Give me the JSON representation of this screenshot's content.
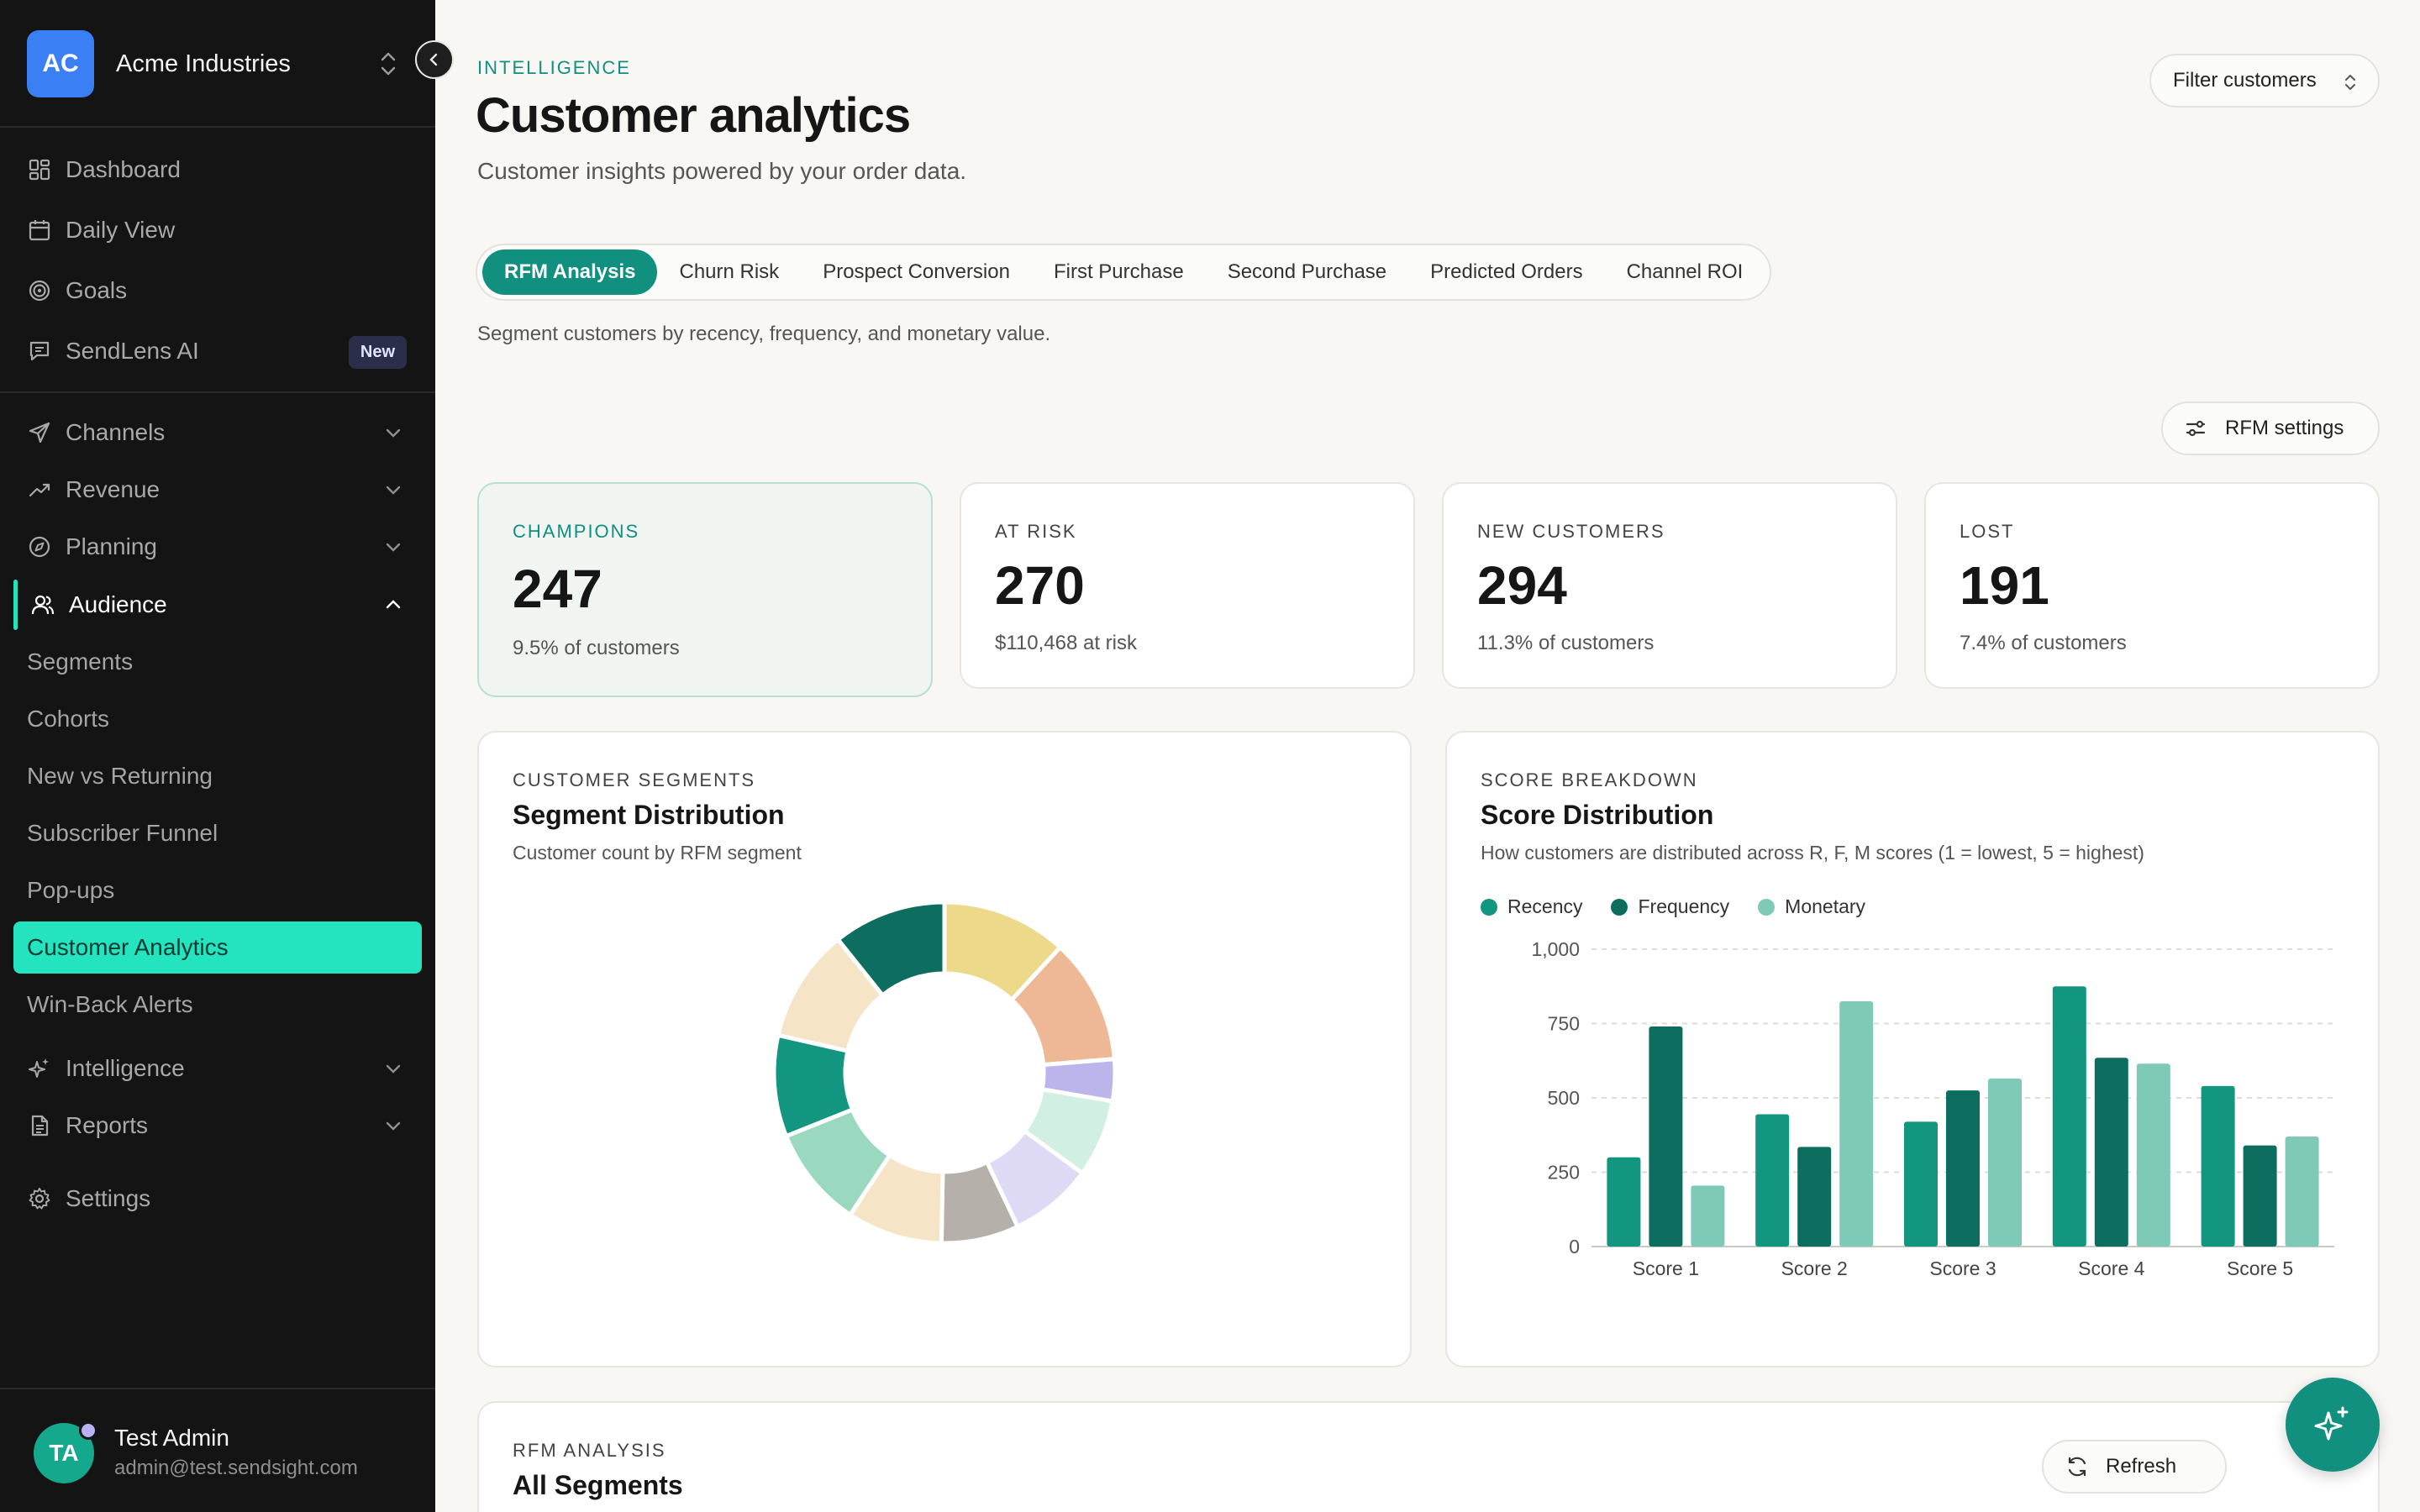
{
  "workspace": {
    "initials": "AC",
    "name": "Acme Industries"
  },
  "nav": {
    "top": [
      {
        "label": "Dashboard",
        "icon": "dashboard-icon"
      },
      {
        "label": "Daily View",
        "icon": "calendar-icon"
      },
      {
        "label": "Goals",
        "icon": "target-icon"
      },
      {
        "label": "SendLens AI",
        "icon": "chat-icon",
        "badge": "New"
      }
    ],
    "groups": [
      {
        "label": "Channels",
        "icon": "send-icon"
      },
      {
        "label": "Revenue",
        "icon": "trend-icon"
      },
      {
        "label": "Planning",
        "icon": "compass-icon"
      },
      {
        "label": "Audience",
        "icon": "users-icon"
      }
    ],
    "audience_items": [
      "Segments",
      "Cohorts",
      "New vs Returning",
      "Subscriber Funnel",
      "Pop-ups",
      "Customer Analytics",
      "Win-Back Alerts"
    ],
    "bottom_groups": [
      {
        "label": "Intelligence",
        "icon": "sparkle-icon"
      },
      {
        "label": "Reports",
        "icon": "document-icon"
      }
    ],
    "settings": "Settings"
  },
  "user": {
    "initials": "TA",
    "name": "Test Admin",
    "email": "admin@test.sendsight.com"
  },
  "header": {
    "eyebrow": "INTELLIGENCE",
    "title": "Customer analytics",
    "subtitle": "Customer insights powered by your order data.",
    "filter_label": "Filter customers"
  },
  "tabs": [
    "RFM Analysis",
    "Churn Risk",
    "Prospect Conversion",
    "First Purchase",
    "Second Purchase",
    "Predicted Orders",
    "Channel ROI"
  ],
  "tab_description": "Segment customers by recency, frequency, and monetary value.",
  "rfm_settings_label": "RFM settings",
  "stats": [
    {
      "label": "CHAMPIONS",
      "value": "247",
      "note": "9.5% of customers"
    },
    {
      "label": "AT RISK",
      "value": "270",
      "note": "$110,468 at risk"
    },
    {
      "label": "NEW CUSTOMERS",
      "value": "294",
      "note": "11.3% of customers"
    },
    {
      "label": "LOST",
      "value": "191",
      "note": "7.4% of customers"
    }
  ],
  "segment_panel": {
    "eyebrow": "CUSTOMER SEGMENTS",
    "title": "Segment Distribution",
    "description": "Customer count by RFM segment"
  },
  "score_panel": {
    "eyebrow": "SCORE BREAKDOWN",
    "title": "Score Distribution",
    "description": "How customers are distributed across R, F, M scores (1 = lowest, 5 = highest)"
  },
  "all_segments": {
    "eyebrow": "RFM ANALYSIS",
    "title": "All Segments",
    "refresh_label": "Refresh"
  },
  "colors": {
    "accent": "#118f7f",
    "sidebar_active": "#24e3bf",
    "recency": "#12967f",
    "frequency": "#0d6e5f",
    "monetary": "#7fc9b7"
  },
  "chart_data": [
    {
      "type": "pie",
      "subtype": "donut",
      "slices": [
        {
          "value": 10.5,
          "color": "#edd98a"
        },
        {
          "value": 10.5,
          "color": "#eeb896"
        },
        {
          "value": 3.5,
          "color": "#bcb5ec"
        },
        {
          "value": 6.5,
          "color": "#d2efe4"
        },
        {
          "value": 7,
          "color": "#dedaf6"
        },
        {
          "value": 6.5,
          "color": "#b6b0aa"
        },
        {
          "value": 8,
          "color": "#f5e4c6"
        },
        {
          "value": 8.5,
          "color": "#9ad8bf"
        },
        {
          "value": 8.5,
          "color": "#12967f"
        },
        {
          "value": 9.5,
          "color": "#f5e4c6"
        },
        {
          "value": 9.5,
          "color": "#0d6e5f"
        }
      ]
    },
    {
      "type": "bar",
      "categories": [
        "Score 1",
        "Score 2",
        "Score 3",
        "Score 4",
        "Score 5"
      ],
      "series": [
        {
          "name": "Recency",
          "values": [
            300,
            445,
            420,
            875,
            540
          ]
        },
        {
          "name": "Frequency",
          "values": [
            740,
            335,
            525,
            635,
            340
          ]
        },
        {
          "name": "Monetary",
          "values": [
            205,
            825,
            565,
            615,
            370
          ]
        }
      ],
      "ylim": [
        0,
        1000
      ],
      "yticks": [
        0,
        250,
        500,
        750,
        1000
      ],
      "ytick_labels": [
        "0",
        "250",
        "500",
        "750",
        "1,000"
      ],
      "legend": "top-left",
      "grid": true
    }
  ]
}
